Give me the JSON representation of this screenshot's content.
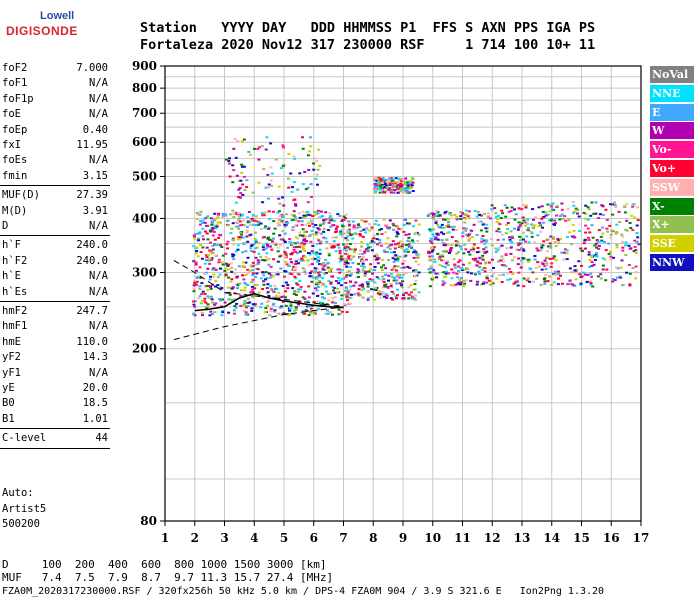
{
  "logo": {
    "line1": "Lowell",
    "line2": "DIGISONDE"
  },
  "header": {
    "line1": "Station   YYYY DAY   DDD HHMMSS P1  FFS S AXN PPS IGA PS",
    "line2": "Fortaleza 2020 Nov12 317 230000 RSF     1 714 100 10+ 11"
  },
  "params": {
    "group1": [
      {
        "name": "foF2",
        "value": "7.000"
      },
      {
        "name": "foF1",
        "value": "N/A"
      },
      {
        "name": "foF1p",
        "value": "N/A"
      },
      {
        "name": "foE",
        "value": "N/A"
      },
      {
        "name": "foEp",
        "value": "0.40"
      },
      {
        "name": "fxI",
        "value": "11.95"
      },
      {
        "name": "foEs",
        "value": "N/A"
      },
      {
        "name": "fmin",
        "value": "3.15"
      }
    ],
    "group2": [
      {
        "name": "MUF(D)",
        "value": "27.39"
      },
      {
        "name": "M(D)",
        "value": "3.91"
      },
      {
        "name": "D",
        "value": "N/A"
      }
    ],
    "group3": [
      {
        "name": "h`F",
        "value": "240.0"
      },
      {
        "name": "h`F2",
        "value": "240.0"
      },
      {
        "name": "h`E",
        "value": "N/A"
      },
      {
        "name": "h`Es",
        "value": "N/A"
      }
    ],
    "group4": [
      {
        "name": "hmF2",
        "value": "247.7"
      },
      {
        "name": "hmF1",
        "value": "N/A"
      },
      {
        "name": "hmE",
        "value": "110.0"
      },
      {
        "name": "yF2",
        "value": "14.3"
      },
      {
        "name": "yF1",
        "value": "N/A"
      },
      {
        "name": "yE",
        "value": "20.0"
      },
      {
        "name": "B0",
        "value": "18.5"
      },
      {
        "name": "B1",
        "value": "1.01"
      }
    ],
    "group5": [
      {
        "name": "C-level",
        "value": "44"
      }
    ],
    "auto": {
      "label": "Auto:",
      "system": "Artist5",
      "version": "500200"
    }
  },
  "legend": [
    {
      "label": "NoVal",
      "bg": "#808080",
      "fg": "#ffffff"
    },
    {
      "label": "NNE",
      "bg": "#00e0ff",
      "fg": "#ffffff"
    },
    {
      "label": "E",
      "bg": "#40a8ff",
      "fg": "#ffffff"
    },
    {
      "label": "W",
      "bg": "#b000b0",
      "fg": "#ffffff"
    },
    {
      "label": "Vo-",
      "bg": "#ff1493",
      "fg": "#ffffff"
    },
    {
      "label": "Vo+",
      "bg": "#ff0030",
      "fg": "#ffffff"
    },
    {
      "label": "SSW",
      "bg": "#ffb0b0",
      "fg": "#ffffff"
    },
    {
      "label": "X-",
      "bg": "#008000",
      "fg": "#ffffff"
    },
    {
      "label": "X+",
      "bg": "#90c050",
      "fg": "#ffffff"
    },
    {
      "label": "SSE",
      "bg": "#d0d000",
      "fg": "#ffffff"
    },
    {
      "label": "NNW",
      "bg": "#1010c0",
      "fg": "#ffffff"
    }
  ],
  "bottom": {
    "d_line": "D     100  200  400  600  800 1000 1500 3000 [km]",
    "muf_line": "MUF   7.4  7.5  7.9  8.7  9.7 11.3 15.7 27.4 [MHz]",
    "footer": "FZA0M_2020317230000.RSF / 320fx256h 50 kHz 5.0 km / DPS-4 FZA0M 904 / 3.9 S 321.6 E   Ion2Png 1.3.20"
  },
  "chart_data": {
    "type": "scatter",
    "title": "",
    "xlabel": "",
    "ylabel": "",
    "xlim": [
      1,
      17
    ],
    "ylim": [
      80,
      900
    ],
    "x_ticks": [
      "1",
      "2",
      "3",
      "4",
      "5",
      "6",
      "7",
      "8",
      "9",
      "10",
      "11",
      "12",
      "13",
      "14",
      "15",
      "16",
      "17"
    ],
    "y_ticks": [
      "80",
      "200",
      "300",
      "400",
      "500",
      "600",
      "700",
      "800",
      "900"
    ],
    "y_scale": "log",
    "grid": true,
    "legend_position": "right",
    "clusters": [
      {
        "x": [
          1.9,
          7.2
        ],
        "y": [
          240,
          420
        ],
        "density": 0.9
      },
      {
        "x": [
          3.0,
          6.2
        ],
        "y": [
          430,
          620
        ],
        "density": 0.15
      },
      {
        "x": [
          7.0,
          9.5
        ],
        "y": [
          260,
          400
        ],
        "density": 0.7
      },
      {
        "x": [
          8.0,
          9.3
        ],
        "y": [
          460,
          500
        ],
        "density": 0.6
      },
      {
        "x": [
          9.8,
          11.8
        ],
        "y": [
          280,
          420
        ],
        "density": 0.7
      },
      {
        "x": [
          11.8,
          16.9
        ],
        "y": [
          280,
          440
        ],
        "density": 0.45
      }
    ],
    "trace_lower": [
      [
        1.3,
        210
      ],
      [
        3.0,
        225
      ],
      [
        5.0,
        240
      ],
      [
        7.0,
        250
      ]
    ],
    "trace_upper": [
      [
        1.3,
        320
      ],
      [
        2.0,
        300
      ],
      [
        3.0,
        270
      ],
      [
        4.0,
        265
      ],
      [
        5.0,
        260
      ],
      [
        7.0,
        250
      ]
    ],
    "fit_curve": [
      [
        2.0,
        245
      ],
      [
        2.5,
        247
      ],
      [
        3.0,
        250
      ],
      [
        3.5,
        262
      ],
      [
        4.0,
        268
      ],
      [
        4.5,
        262
      ],
      [
        5.0,
        258
      ],
      [
        5.5,
        255
      ],
      [
        6.0,
        252
      ],
      [
        6.5,
        250
      ],
      [
        7.0,
        249
      ]
    ]
  }
}
